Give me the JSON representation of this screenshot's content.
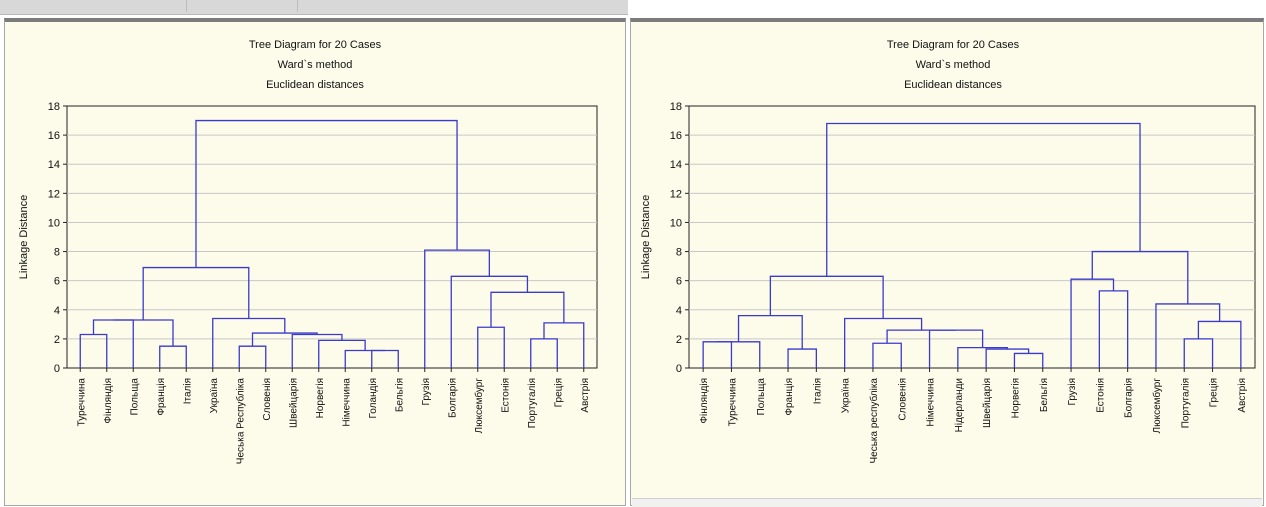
{
  "chart_data": [
    {
      "type": "dendrogram",
      "title_lines": [
        "Tree Diagram for 20 Cases",
        "Ward`s method",
        "Euclidean distances"
      ],
      "ylabel": "Linkage Distance",
      "ylim": [
        0,
        18
      ],
      "yticks": [
        0,
        2,
        4,
        6,
        8,
        10,
        12,
        14,
        16,
        18
      ],
      "grid": true,
      "line_color": "#3a3acc",
      "leaves": [
        "Туреччина",
        "Фінляндія",
        "Польща",
        "Франція",
        "Італія",
        "Україна",
        "Чеська Республіка",
        "Словенія",
        "Швейцарія",
        "Норвегія",
        "Німеччина",
        "Голандія",
        "Бельгія",
        "Грузія",
        "Болгарія",
        "Люксембург",
        "Естонія",
        "Португалія",
        "Греція",
        "Австрія"
      ],
      "merges": [
        {
          "id": "a1",
          "children": [
            0,
            1
          ],
          "height": 2.3
        },
        {
          "id": "a2",
          "children": [
            "a1",
            2
          ],
          "height": 3.3
        },
        {
          "id": "a3",
          "children": [
            3,
            4
          ],
          "height": 1.5
        },
        {
          "id": "a4",
          "children": [
            "a2",
            "a3"
          ],
          "height": 3.3
        },
        {
          "id": "a5",
          "children": [
            11,
            12
          ],
          "height": 1.2
        },
        {
          "id": "a6",
          "children": [
            10,
            "a5"
          ],
          "height": 1.2
        },
        {
          "id": "a7",
          "children": [
            9,
            "a6"
          ],
          "height": 1.9
        },
        {
          "id": "a8",
          "children": [
            8,
            "a7"
          ],
          "height": 2.3
        },
        {
          "id": "a9",
          "children": [
            6,
            7
          ],
          "height": 1.5
        },
        {
          "id": "a10",
          "children": [
            "a9",
            "a8"
          ],
          "height": 2.4
        },
        {
          "id": "a11",
          "children": [
            5,
            "a10"
          ],
          "height": 3.4
        },
        {
          "id": "a12",
          "children": [
            "a4",
            "a11"
          ],
          "height": 6.9
        },
        {
          "id": "a13",
          "children": [
            17,
            18
          ],
          "height": 2.0
        },
        {
          "id": "a14",
          "children": [
            "a13",
            19
          ],
          "height": 3.1
        },
        {
          "id": "a15",
          "children": [
            15,
            16
          ],
          "height": 2.8
        },
        {
          "id": "a16",
          "children": [
            "a15",
            "a14"
          ],
          "height": 5.2
        },
        {
          "id": "a17",
          "children": [
            14,
            "a16"
          ],
          "height": 6.3
        },
        {
          "id": "a18",
          "children": [
            13,
            "a17"
          ],
          "height": 8.1
        },
        {
          "id": "a19",
          "children": [
            "a12",
            "a18"
          ],
          "height": 17.0
        }
      ]
    },
    {
      "type": "dendrogram",
      "title_lines": [
        "Tree Diagram for 20 Cases",
        "Ward`s method",
        "Euclidean distances"
      ],
      "ylabel": "Linkage Distance",
      "ylim": [
        0,
        18
      ],
      "yticks": [
        0,
        2,
        4,
        6,
        8,
        10,
        12,
        14,
        16,
        18
      ],
      "grid": true,
      "line_color": "#3a3acc",
      "leaves": [
        "Фінляндія",
        "Туреччина",
        "Польща",
        "Франція",
        "Італія",
        "Україна",
        "Чеська республіка",
        "Словенія",
        "Німеччина",
        "Нідерланди",
        "Швейцарія",
        "Норвегія",
        "Бельгія",
        "Грузія",
        "Естонія",
        "Болгарія",
        "Люксембург",
        "Португалія",
        "Греція",
        "Австрія"
      ],
      "merges": [
        {
          "id": "b1",
          "children": [
            0,
            1
          ],
          "height": 1.8
        },
        {
          "id": "b2",
          "children": [
            "b1",
            2
          ],
          "height": 1.8
        },
        {
          "id": "b3",
          "children": [
            3,
            4
          ],
          "height": 1.3
        },
        {
          "id": "b4",
          "children": [
            "b2",
            "b3"
          ],
          "height": 3.6
        },
        {
          "id": "b5",
          "children": [
            11,
            12
          ],
          "height": 1.0
        },
        {
          "id": "b6",
          "children": [
            10,
            "b5"
          ],
          "height": 1.3
        },
        {
          "id": "b7",
          "children": [
            9,
            "b6"
          ],
          "height": 1.4
        },
        {
          "id": "b8",
          "children": [
            8,
            "b7"
          ],
          "height": 2.6
        },
        {
          "id": "b9",
          "children": [
            6,
            7
          ],
          "height": 1.7
        },
        {
          "id": "b10",
          "children": [
            "b9",
            "b8"
          ],
          "height": 2.6
        },
        {
          "id": "b11",
          "children": [
            5,
            "b10"
          ],
          "height": 3.4
        },
        {
          "id": "b12",
          "children": [
            "b4",
            "b11"
          ],
          "height": 6.3
        },
        {
          "id": "b13",
          "children": [
            14,
            15
          ],
          "height": 5.3
        },
        {
          "id": "b14",
          "children": [
            13,
            "b13"
          ],
          "height": 6.1
        },
        {
          "id": "b15",
          "children": [
            17,
            18
          ],
          "height": 2.0
        },
        {
          "id": "b16",
          "children": [
            "b15",
            19
          ],
          "height": 3.2
        },
        {
          "id": "b17",
          "children": [
            16,
            "b16"
          ],
          "height": 4.4
        },
        {
          "id": "b18",
          "children": [
            "b14",
            "b17"
          ],
          "height": 8.0
        },
        {
          "id": "b19",
          "children": [
            "b12",
            "b18"
          ],
          "height": 16.8
        }
      ]
    }
  ]
}
